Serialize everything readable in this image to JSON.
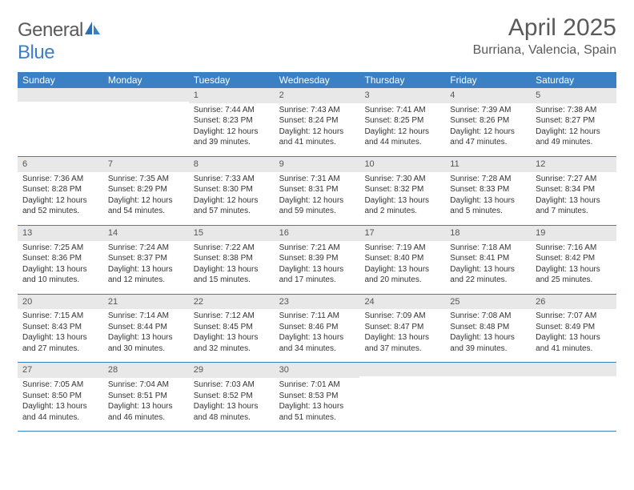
{
  "brand": {
    "name_part1": "General",
    "name_part2": "Blue"
  },
  "title": "April 2025",
  "location": "Burriana, Valencia, Spain",
  "colors": {
    "header_bg": "#3b7fc4",
    "header_text": "#ffffff",
    "daynum_bg": "#e8e8e8",
    "text": "#333333",
    "brand_gray": "#5a5a5a",
    "brand_blue": "#3b7fc4",
    "border": "#3b7fc4",
    "page_bg": "#ffffff"
  },
  "typography": {
    "title_fontsize": 30,
    "location_fontsize": 16,
    "weekday_fontsize": 12,
    "daynum_fontsize": 11,
    "body_fontsize": 10
  },
  "weekdays": [
    "Sunday",
    "Monday",
    "Tuesday",
    "Wednesday",
    "Thursday",
    "Friday",
    "Saturday"
  ],
  "weeks": [
    [
      {
        "n": "",
        "sunrise": "",
        "sunset": "",
        "daylight1": "",
        "daylight2": ""
      },
      {
        "n": "",
        "sunrise": "",
        "sunset": "",
        "daylight1": "",
        "daylight2": ""
      },
      {
        "n": "1",
        "sunrise": "Sunrise: 7:44 AM",
        "sunset": "Sunset: 8:23 PM",
        "daylight1": "Daylight: 12 hours",
        "daylight2": "and 39 minutes."
      },
      {
        "n": "2",
        "sunrise": "Sunrise: 7:43 AM",
        "sunset": "Sunset: 8:24 PM",
        "daylight1": "Daylight: 12 hours",
        "daylight2": "and 41 minutes."
      },
      {
        "n": "3",
        "sunrise": "Sunrise: 7:41 AM",
        "sunset": "Sunset: 8:25 PM",
        "daylight1": "Daylight: 12 hours",
        "daylight2": "and 44 minutes."
      },
      {
        "n": "4",
        "sunrise": "Sunrise: 7:39 AM",
        "sunset": "Sunset: 8:26 PM",
        "daylight1": "Daylight: 12 hours",
        "daylight2": "and 47 minutes."
      },
      {
        "n": "5",
        "sunrise": "Sunrise: 7:38 AM",
        "sunset": "Sunset: 8:27 PM",
        "daylight1": "Daylight: 12 hours",
        "daylight2": "and 49 minutes."
      }
    ],
    [
      {
        "n": "6",
        "sunrise": "Sunrise: 7:36 AM",
        "sunset": "Sunset: 8:28 PM",
        "daylight1": "Daylight: 12 hours",
        "daylight2": "and 52 minutes."
      },
      {
        "n": "7",
        "sunrise": "Sunrise: 7:35 AM",
        "sunset": "Sunset: 8:29 PM",
        "daylight1": "Daylight: 12 hours",
        "daylight2": "and 54 minutes."
      },
      {
        "n": "8",
        "sunrise": "Sunrise: 7:33 AM",
        "sunset": "Sunset: 8:30 PM",
        "daylight1": "Daylight: 12 hours",
        "daylight2": "and 57 minutes."
      },
      {
        "n": "9",
        "sunrise": "Sunrise: 7:31 AM",
        "sunset": "Sunset: 8:31 PM",
        "daylight1": "Daylight: 12 hours",
        "daylight2": "and 59 minutes."
      },
      {
        "n": "10",
        "sunrise": "Sunrise: 7:30 AM",
        "sunset": "Sunset: 8:32 PM",
        "daylight1": "Daylight: 13 hours",
        "daylight2": "and 2 minutes."
      },
      {
        "n": "11",
        "sunrise": "Sunrise: 7:28 AM",
        "sunset": "Sunset: 8:33 PM",
        "daylight1": "Daylight: 13 hours",
        "daylight2": "and 5 minutes."
      },
      {
        "n": "12",
        "sunrise": "Sunrise: 7:27 AM",
        "sunset": "Sunset: 8:34 PM",
        "daylight1": "Daylight: 13 hours",
        "daylight2": "and 7 minutes."
      }
    ],
    [
      {
        "n": "13",
        "sunrise": "Sunrise: 7:25 AM",
        "sunset": "Sunset: 8:36 PM",
        "daylight1": "Daylight: 13 hours",
        "daylight2": "and 10 minutes."
      },
      {
        "n": "14",
        "sunrise": "Sunrise: 7:24 AM",
        "sunset": "Sunset: 8:37 PM",
        "daylight1": "Daylight: 13 hours",
        "daylight2": "and 12 minutes."
      },
      {
        "n": "15",
        "sunrise": "Sunrise: 7:22 AM",
        "sunset": "Sunset: 8:38 PM",
        "daylight1": "Daylight: 13 hours",
        "daylight2": "and 15 minutes."
      },
      {
        "n": "16",
        "sunrise": "Sunrise: 7:21 AM",
        "sunset": "Sunset: 8:39 PM",
        "daylight1": "Daylight: 13 hours",
        "daylight2": "and 17 minutes."
      },
      {
        "n": "17",
        "sunrise": "Sunrise: 7:19 AM",
        "sunset": "Sunset: 8:40 PM",
        "daylight1": "Daylight: 13 hours",
        "daylight2": "and 20 minutes."
      },
      {
        "n": "18",
        "sunrise": "Sunrise: 7:18 AM",
        "sunset": "Sunset: 8:41 PM",
        "daylight1": "Daylight: 13 hours",
        "daylight2": "and 22 minutes."
      },
      {
        "n": "19",
        "sunrise": "Sunrise: 7:16 AM",
        "sunset": "Sunset: 8:42 PM",
        "daylight1": "Daylight: 13 hours",
        "daylight2": "and 25 minutes."
      }
    ],
    [
      {
        "n": "20",
        "sunrise": "Sunrise: 7:15 AM",
        "sunset": "Sunset: 8:43 PM",
        "daylight1": "Daylight: 13 hours",
        "daylight2": "and 27 minutes."
      },
      {
        "n": "21",
        "sunrise": "Sunrise: 7:14 AM",
        "sunset": "Sunset: 8:44 PM",
        "daylight1": "Daylight: 13 hours",
        "daylight2": "and 30 minutes."
      },
      {
        "n": "22",
        "sunrise": "Sunrise: 7:12 AM",
        "sunset": "Sunset: 8:45 PM",
        "daylight1": "Daylight: 13 hours",
        "daylight2": "and 32 minutes."
      },
      {
        "n": "23",
        "sunrise": "Sunrise: 7:11 AM",
        "sunset": "Sunset: 8:46 PM",
        "daylight1": "Daylight: 13 hours",
        "daylight2": "and 34 minutes."
      },
      {
        "n": "24",
        "sunrise": "Sunrise: 7:09 AM",
        "sunset": "Sunset: 8:47 PM",
        "daylight1": "Daylight: 13 hours",
        "daylight2": "and 37 minutes."
      },
      {
        "n": "25",
        "sunrise": "Sunrise: 7:08 AM",
        "sunset": "Sunset: 8:48 PM",
        "daylight1": "Daylight: 13 hours",
        "daylight2": "and 39 minutes."
      },
      {
        "n": "26",
        "sunrise": "Sunrise: 7:07 AM",
        "sunset": "Sunset: 8:49 PM",
        "daylight1": "Daylight: 13 hours",
        "daylight2": "and 41 minutes."
      }
    ],
    [
      {
        "n": "27",
        "sunrise": "Sunrise: 7:05 AM",
        "sunset": "Sunset: 8:50 PM",
        "daylight1": "Daylight: 13 hours",
        "daylight2": "and 44 minutes."
      },
      {
        "n": "28",
        "sunrise": "Sunrise: 7:04 AM",
        "sunset": "Sunset: 8:51 PM",
        "daylight1": "Daylight: 13 hours",
        "daylight2": "and 46 minutes."
      },
      {
        "n": "29",
        "sunrise": "Sunrise: 7:03 AM",
        "sunset": "Sunset: 8:52 PM",
        "daylight1": "Daylight: 13 hours",
        "daylight2": "and 48 minutes."
      },
      {
        "n": "30",
        "sunrise": "Sunrise: 7:01 AM",
        "sunset": "Sunset: 8:53 PM",
        "daylight1": "Daylight: 13 hours",
        "daylight2": "and 51 minutes."
      },
      {
        "n": "",
        "sunrise": "",
        "sunset": "",
        "daylight1": "",
        "daylight2": ""
      },
      {
        "n": "",
        "sunrise": "",
        "sunset": "",
        "daylight1": "",
        "daylight2": ""
      },
      {
        "n": "",
        "sunrise": "",
        "sunset": "",
        "daylight1": "",
        "daylight2": ""
      }
    ]
  ]
}
